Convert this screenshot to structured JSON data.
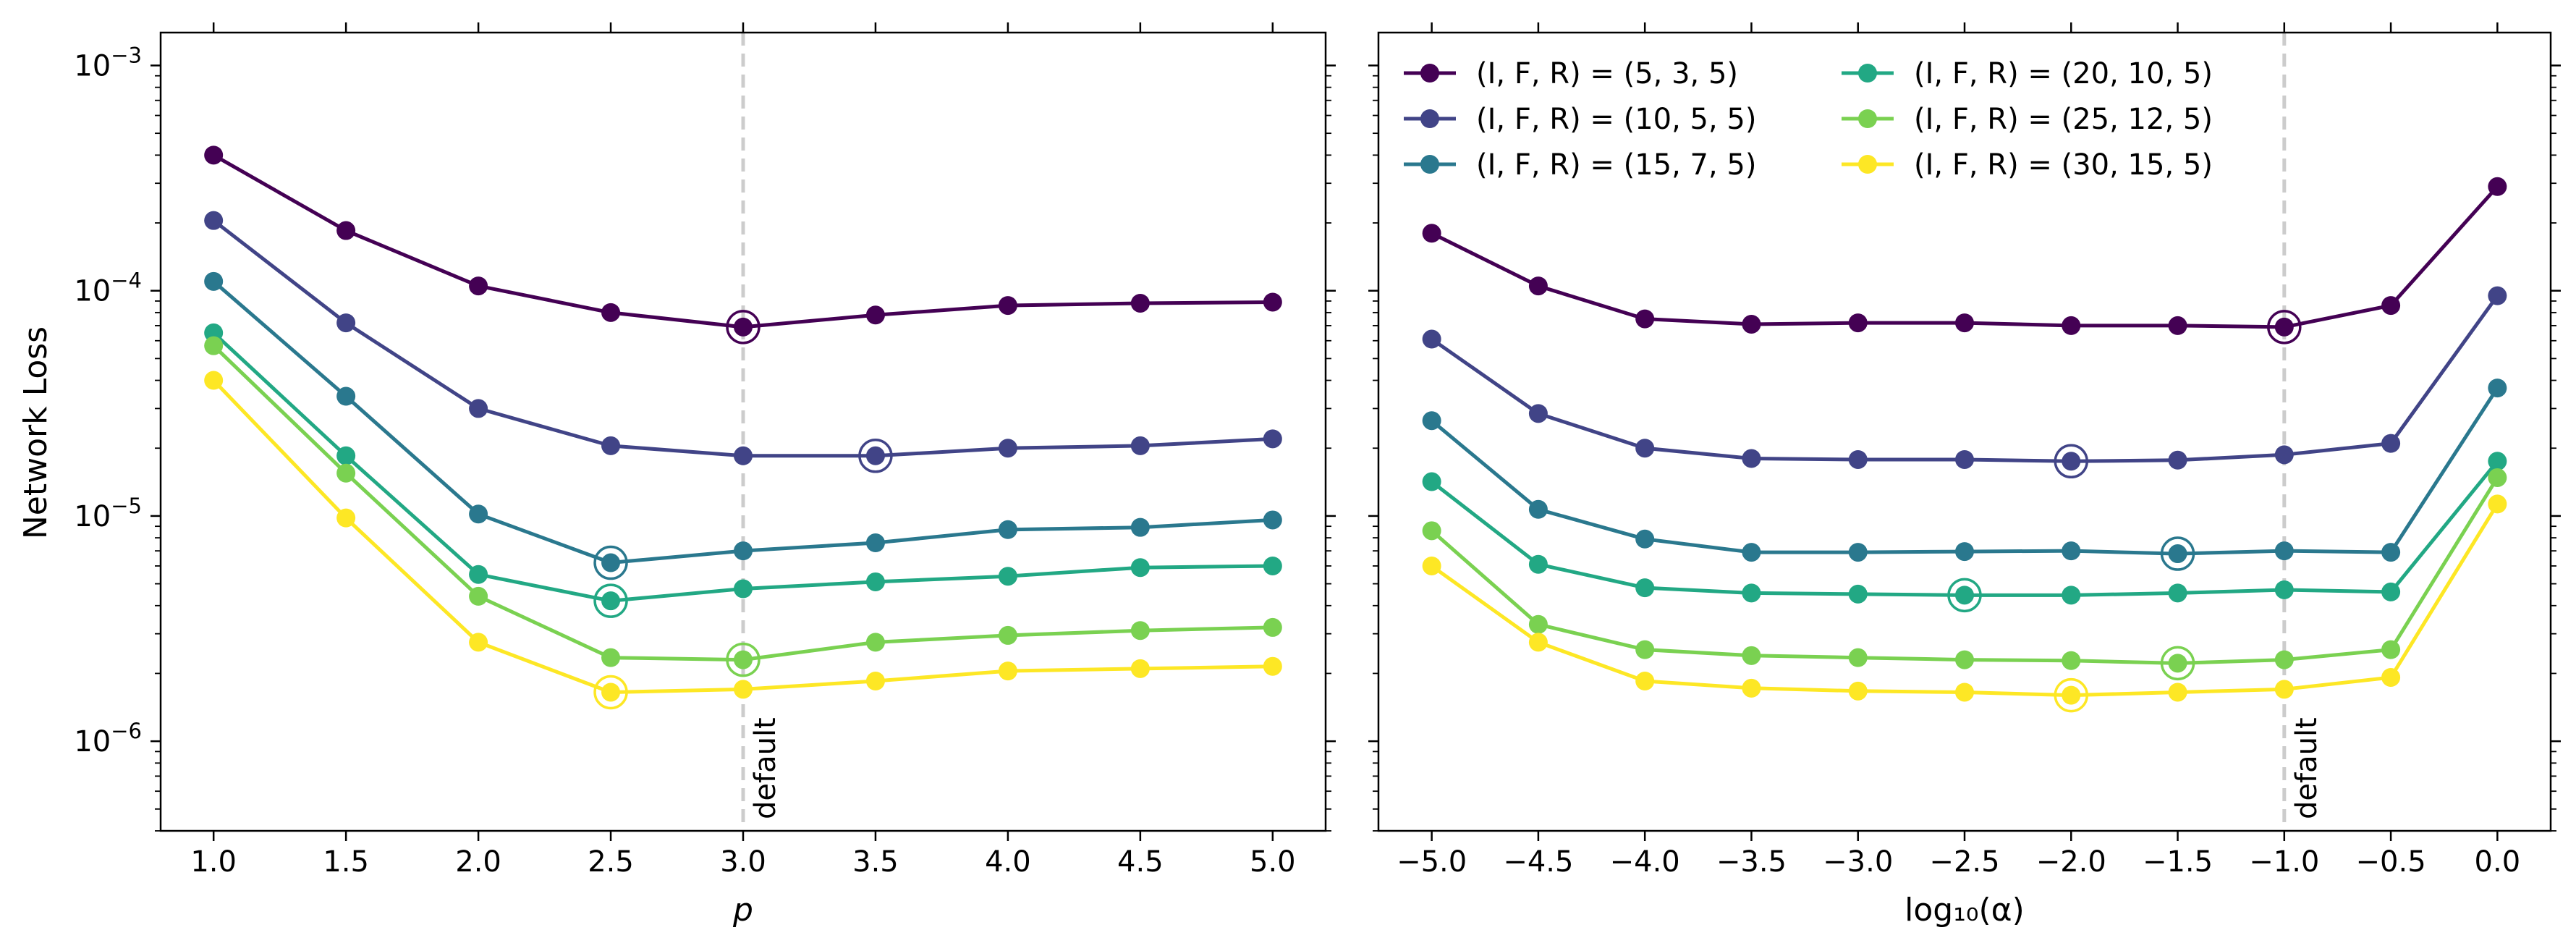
{
  "figure": {
    "ylabel": "Network Loss",
    "default_label": "default"
  },
  "colors": {
    "series": [
      "#440154",
      "#414487",
      "#2a788e",
      "#22a884",
      "#7ad151",
      "#fde725"
    ],
    "default_line": "#cccccc",
    "axis": "#000000"
  },
  "chart_data": [
    {
      "type": "line",
      "panel": "left",
      "xlabel": "p",
      "ylabel": "Network Loss",
      "yscale": "log",
      "xlim": [
        0.8,
        5.2
      ],
      "ylim": [
        4e-07,
        0.0014
      ],
      "xticks": [
        1.0,
        1.5,
        2.0,
        2.5,
        3.0,
        3.5,
        4.0,
        4.5,
        5.0
      ],
      "xtick_labels": [
        "1.0",
        "1.5",
        "2.0",
        "2.5",
        "3.0",
        "3.5",
        "4.0",
        "4.5",
        "5.0"
      ],
      "yticks": [
        1e-06,
        1e-05,
        0.0001,
        0.001
      ],
      "ytick_labels": [
        {
          "base": "10",
          "exp": "−6"
        },
        {
          "base": "10",
          "exp": "−5"
        },
        {
          "base": "10",
          "exp": "−4"
        },
        {
          "base": "10",
          "exp": "−3"
        }
      ],
      "default_x": 3.0,
      "x": [
        1.0,
        1.5,
        2.0,
        2.5,
        3.0,
        3.5,
        4.0,
        4.5,
        5.0
      ],
      "series": [
        {
          "name": "(I, F, R) = (5, 3, 5)",
          "values": [
            0.0004,
            0.000185,
            0.000105,
            8e-05,
            6.9e-05,
            7.8e-05,
            8.6e-05,
            8.8e-05,
            8.9e-05
          ],
          "best_index": 4
        },
        {
          "name": "(I, F, R) = (10, 5, 5)",
          "values": [
            0.000205,
            7.2e-05,
            3e-05,
            2.05e-05,
            1.85e-05,
            1.85e-05,
            2e-05,
            2.05e-05,
            2.2e-05
          ],
          "best_index": 5
        },
        {
          "name": "(I, F, R) = (15, 7, 5)",
          "values": [
            0.00011,
            3.4e-05,
            1.02e-05,
            6.2e-06,
            7e-06,
            7.6e-06,
            8.7e-06,
            8.9e-06,
            9.6e-06
          ],
          "best_index": 3
        },
        {
          "name": "(I, F, R) = (20, 10, 5)",
          "values": [
            6.5e-05,
            1.85e-05,
            5.5e-06,
            4.2e-06,
            4.75e-06,
            5.1e-06,
            5.4e-06,
            5.9e-06,
            6e-06
          ],
          "best_index": 3
        },
        {
          "name": "(I, F, R) = (25, 12, 5)",
          "values": [
            5.7e-05,
            1.55e-05,
            4.4e-06,
            2.35e-06,
            2.3e-06,
            2.75e-06,
            2.95e-06,
            3.1e-06,
            3.2e-06
          ],
          "best_index": 4
        },
        {
          "name": "(I, F, R) = (30, 15, 5)",
          "values": [
            4e-05,
            9.8e-06,
            2.75e-06,
            1.65e-06,
            1.7e-06,
            1.85e-06,
            2.05e-06,
            2.1e-06,
            2.15e-06
          ],
          "best_index": 3
        }
      ]
    },
    {
      "type": "line",
      "panel": "right",
      "xlabel": "log₁₀(α)",
      "ylabel": "",
      "yscale": "log",
      "xlim": [
        -5.25,
        0.25
      ],
      "ylim": [
        4e-07,
        0.0014
      ],
      "xticks": [
        -5.0,
        -4.5,
        -4.0,
        -3.5,
        -3.0,
        -2.5,
        -2.0,
        -1.5,
        -1.0,
        -0.5,
        0.0
      ],
      "xtick_labels": [
        "−5.0",
        "−4.5",
        "−4.0",
        "−3.5",
        "−3.0",
        "−2.5",
        "−2.0",
        "−1.5",
        "−1.0",
        "−0.5",
        "0.0"
      ],
      "default_x": -1.0,
      "legend_position": "upper-left",
      "x": [
        -5.0,
        -4.5,
        -4.0,
        -3.5,
        -3.0,
        -2.5,
        -2.0,
        -1.5,
        -1.0,
        -0.5,
        0.0
      ],
      "series": [
        {
          "name": "(I, F, R) = (5, 3, 5)",
          "values": [
            0.00018,
            0.000105,
            7.5e-05,
            7.1e-05,
            7.2e-05,
            7.2e-05,
            7e-05,
            7e-05,
            6.9e-05,
            8.6e-05,
            0.00029
          ],
          "best_index": 8
        },
        {
          "name": "(I, F, R) = (10, 5, 5)",
          "values": [
            6.1e-05,
            2.85e-05,
            2e-05,
            1.8e-05,
            1.78e-05,
            1.78e-05,
            1.75e-05,
            1.77e-05,
            1.87e-05,
            2.1e-05,
            9.5e-05
          ],
          "best_index": 6
        },
        {
          "name": "(I, F, R) = (15, 7, 5)",
          "values": [
            2.65e-05,
            1.07e-05,
            7.9e-06,
            6.9e-06,
            6.9e-06,
            6.95e-06,
            7e-06,
            6.8e-06,
            7e-06,
            6.9e-06,
            3.7e-05
          ],
          "best_index": 7
        },
        {
          "name": "(I, F, R) = (20, 10, 5)",
          "values": [
            1.42e-05,
            6.1e-06,
            4.8e-06,
            4.55e-06,
            4.5e-06,
            4.45e-06,
            4.45e-06,
            4.55e-06,
            4.7e-06,
            4.6e-06,
            1.75e-05
          ],
          "best_index": 5
        },
        {
          "name": "(I, F, R) = (25, 12, 5)",
          "values": [
            8.6e-06,
            3.3e-06,
            2.55e-06,
            2.4e-06,
            2.35e-06,
            2.3e-06,
            2.28e-06,
            2.22e-06,
            2.3e-06,
            2.55e-06,
            1.48e-05
          ],
          "best_index": 7
        },
        {
          "name": "(I, F, R) = (30, 15, 5)",
          "values": [
            6e-06,
            2.75e-06,
            1.85e-06,
            1.72e-06,
            1.67e-06,
            1.65e-06,
            1.6e-06,
            1.65e-06,
            1.7e-06,
            1.92e-06,
            1.13e-05
          ],
          "best_index": 6
        }
      ]
    }
  ]
}
